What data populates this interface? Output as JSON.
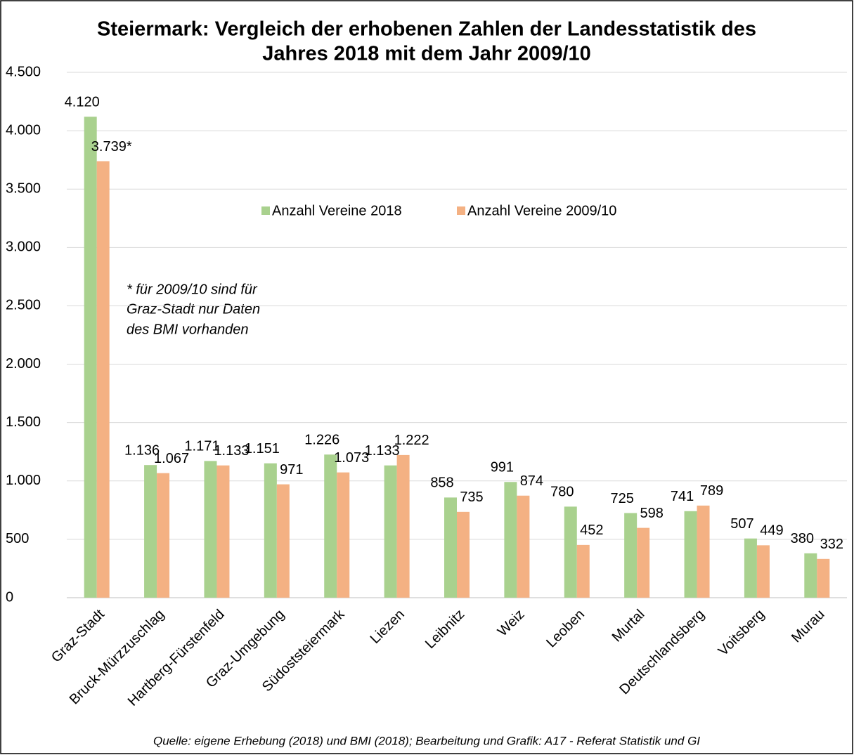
{
  "chart_data": {
    "type": "bar",
    "title": [
      "Steiermark: Vergleich der erhobenen Zahlen der Landesstatistik des",
      "Jahres 2018 mit dem Jahr 2009/10"
    ],
    "categories": [
      "Graz-Stadt",
      "Bruck-Mürzzuschlag",
      "Hartberg-Fürstenfeld",
      "Graz-Umgebung",
      "Südoststeiermark",
      "Liezen",
      "Leibnitz",
      "Weiz",
      "Leoben",
      "Murtal",
      "Deutschlandsberg",
      "Voitsberg",
      "Murau"
    ],
    "series": [
      {
        "name": "Anzahl Vereine 2018",
        "color": "#a9d18e",
        "values": [
          4120,
          1136,
          1171,
          1151,
          1226,
          1133,
          858,
          991,
          780,
          725,
          741,
          507,
          380
        ],
        "value_labels": [
          "4.120",
          "1.136",
          "1.171",
          "1.151",
          "1.226",
          "1.133",
          "858",
          "991",
          "780",
          "725",
          "741",
          "507",
          "380"
        ]
      },
      {
        "name": "Anzahl Vereine 2009/10",
        "color": "#f4b183",
        "values": [
          3739,
          1067,
          1133,
          971,
          1073,
          1222,
          735,
          874,
          452,
          598,
          789,
          449,
          332
        ],
        "value_labels": [
          "3.739*",
          "1.067",
          "1.133",
          "971",
          "1.073",
          "1.222",
          "735",
          "874",
          "452",
          "598",
          "789",
          "449",
          "332"
        ]
      }
    ],
    "ylim": [
      0,
      4500
    ],
    "yticks": [
      0,
      500,
      {
        "value": 1000,
        "label": "1.000"
      },
      {
        "value": 1500,
        "label": "1.500"
      },
      {
        "value": 2000,
        "label": "2.000"
      },
      {
        "value": 2500,
        "label": "2.500"
      },
      {
        "value": 3000,
        "label": "3.000"
      },
      {
        "value": 3500,
        "label": "3.500"
      },
      {
        "value": 4000,
        "label": "4.000"
      },
      {
        "value": 4500,
        "label": "4.500"
      }
    ],
    "grid": true,
    "annotation": [
      "* für 2009/10 sind für",
      "Graz-Stadt nur Daten",
      "des BMI vorhanden"
    ],
    "source": "Quelle: eigene Erhebung (2018) und BMI (2018); Bearbeitung und Grafik: A17 - Referat Statistik und GI"
  }
}
